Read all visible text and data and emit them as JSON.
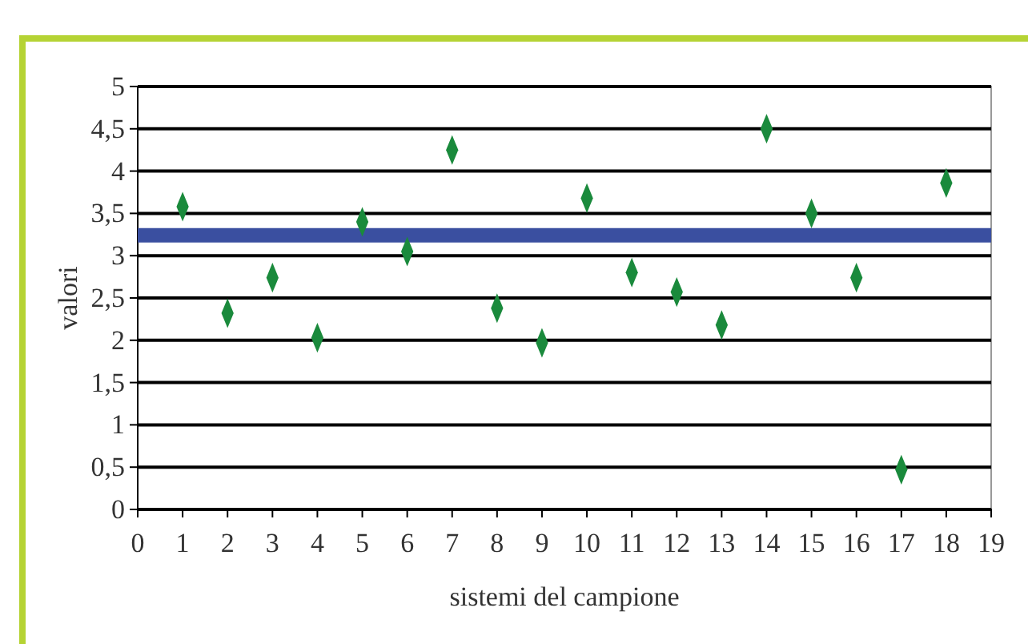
{
  "chart_data": {
    "type": "scatter",
    "xlabel": "sistemi del campione",
    "ylabel": "valori",
    "x": [
      1,
      2,
      3,
      4,
      5,
      6,
      7,
      8,
      9,
      10,
      11,
      12,
      13,
      14,
      15,
      16,
      17,
      18
    ],
    "series": [
      {
        "color": "#1a8a3c",
        "values": [
          3.58,
          2.32,
          2.74,
          2.03,
          3.4,
          3.05,
          4.25,
          2.38,
          1.97,
          3.68,
          2.8,
          2.57,
          2.18,
          4.5,
          3.5,
          2.74,
          0.47,
          3.86
        ]
      }
    ],
    "marker": "diamond",
    "grid": "y",
    "xlim": [
      0,
      19
    ],
    "xticks": [
      0,
      1,
      2,
      3,
      4,
      5,
      6,
      7,
      8,
      9,
      10,
      11,
      12,
      13,
      14,
      15,
      16,
      17,
      18,
      19
    ],
    "ylim": [
      0,
      5
    ],
    "yticks": [
      0,
      {
        "value": 0.5,
        "label": "0,5"
      },
      1,
      {
        "value": 1.5,
        "label": "1,5"
      },
      2,
      {
        "value": 2.5,
        "label": "2,5"
      },
      3,
      {
        "value": 3.5,
        "label": "3,5"
      },
      4,
      {
        "value": 4.5,
        "label": "4,5"
      },
      5
    ],
    "ref_lines": [
      {
        "axis": "y",
        "value": 3.24,
        "label": null,
        "color": "#3a4fa0"
      }
    ]
  }
}
